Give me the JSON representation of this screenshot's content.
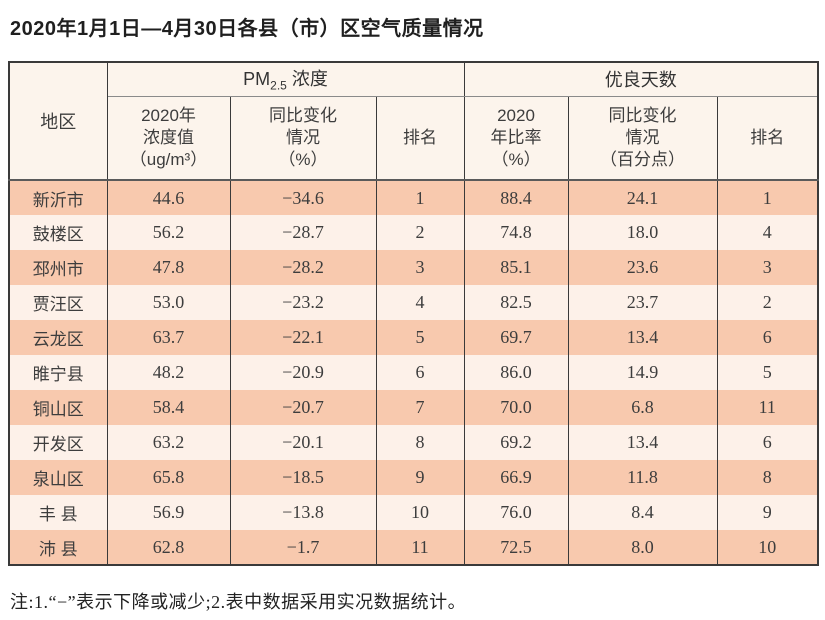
{
  "title": "2020年1月1日—4月30日各县（市）区空气质量情况",
  "table": {
    "region_header": "地区",
    "groups": {
      "pm25": {
        "pre": "PM",
        "sub": "2.5",
        "post": " 浓度"
      },
      "good_days": "优良天数"
    },
    "columns": {
      "pm_value": "2020年\n浓度值\n（ug/m³）",
      "pm_change": "同比变化\n情况\n（%）",
      "pm_rank": "排名",
      "gd_ratio": "2020\n年比率\n（%）",
      "gd_change": "同比变化\n情况\n（百分点）",
      "gd_rank": "排名"
    },
    "rows": [
      [
        "新沂市",
        "44.6",
        "−34.6",
        "1",
        "88.4",
        "24.1",
        "1"
      ],
      [
        "鼓楼区",
        "56.2",
        "−28.7",
        "2",
        "74.8",
        "18.0",
        "4"
      ],
      [
        "邳州市",
        "47.8",
        "−28.2",
        "3",
        "85.1",
        "23.6",
        "3"
      ],
      [
        "贾汪区",
        "53.0",
        "−23.2",
        "4",
        "82.5",
        "23.7",
        "2"
      ],
      [
        "云龙区",
        "63.7",
        "−22.1",
        "5",
        "69.7",
        "13.4",
        "6"
      ],
      [
        "睢宁县",
        "48.2",
        "−20.9",
        "6",
        "86.0",
        "14.9",
        "5"
      ],
      [
        "铜山区",
        "58.4",
        "−20.7",
        "7",
        "70.0",
        "6.8",
        "11"
      ],
      [
        "开发区",
        "63.2",
        "−20.1",
        "8",
        "69.2",
        "13.4",
        "6"
      ],
      [
        "泉山区",
        "65.8",
        "−18.5",
        "9",
        "66.9",
        "11.8",
        "8"
      ],
      [
        "丰 县",
        "56.9",
        "−13.8",
        "10",
        "76.0",
        "8.4",
        "9"
      ],
      [
        "沛 县",
        "62.8",
        "−1.7",
        "11",
        "72.5",
        "8.0",
        "10"
      ]
    ]
  },
  "footnote": "注:1.“−”表示下降或减少;2.表中数据采用实况数据统计。",
  "colors": {
    "row_dark": "#f8c9ae",
    "row_light": "#fdf1e9",
    "header_bg": "#fcf4ec",
    "border": "#3a3a3a"
  }
}
